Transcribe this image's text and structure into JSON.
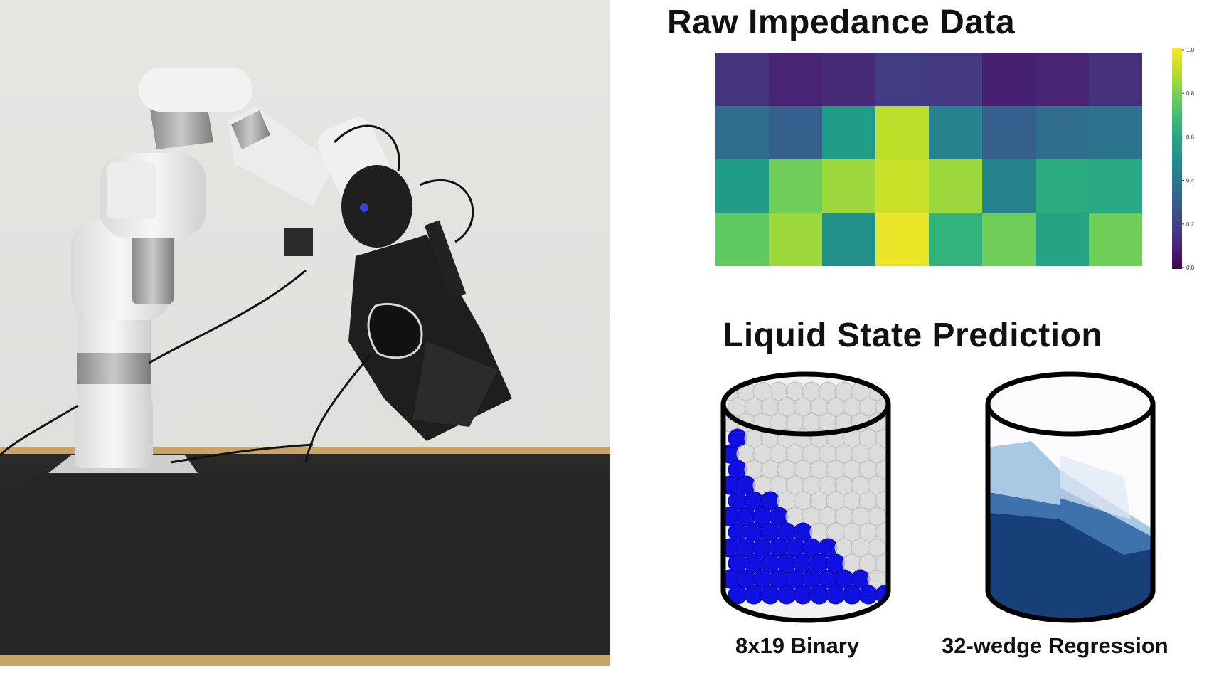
{
  "panel": {
    "heatmap_title": "Raw Impedance Data",
    "prediction_title": "Liquid State Prediction",
    "binary_caption": "8x19 Binary",
    "regression_caption": "32-wedge Regression"
  },
  "chart_data": {
    "type": "heatmap",
    "title": "Raw Impedance Data",
    "rows": 4,
    "cols": 8,
    "values": [
      [
        0.15,
        0.1,
        0.12,
        0.18,
        0.17,
        0.09,
        0.1,
        0.14
      ],
      [
        0.35,
        0.3,
        0.55,
        0.9,
        0.45,
        0.3,
        0.35,
        0.38
      ],
      [
        0.55,
        0.78,
        0.85,
        0.92,
        0.85,
        0.45,
        0.62,
        0.6
      ],
      [
        0.75,
        0.85,
        0.5,
        0.97,
        0.65,
        0.78,
        0.58,
        0.78
      ]
    ],
    "colormap": "viridis",
    "colorbar_ticks": [
      "1.0",
      "0.8",
      "0.6",
      "0.4",
      "0.2",
      "0.0"
    ],
    "vmin": 0.0,
    "vmax": 1.0
  },
  "colors": {
    "binary_fill": "#1010e0",
    "regression_dark": "#173f78",
    "regression_mid": "#3e72ad",
    "regression_light": "#a8c8e4"
  }
}
